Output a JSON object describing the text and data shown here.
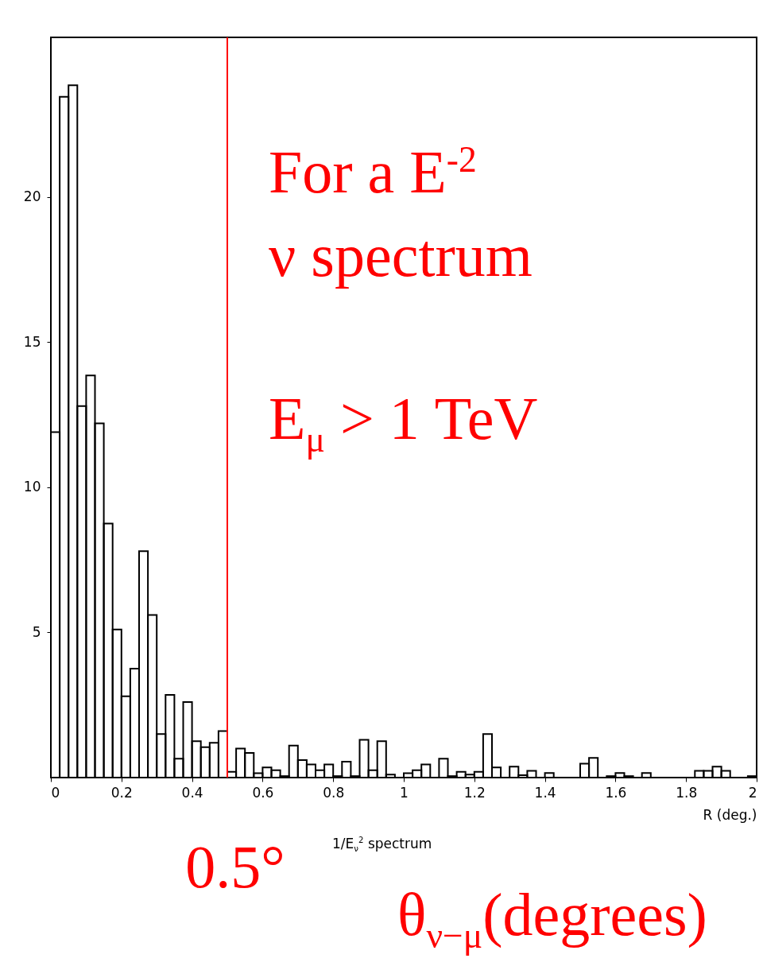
{
  "chart_data": {
    "type": "histogram",
    "xlabel": "R (deg.)",
    "bins": [
      0,
      0.025,
      0.05,
      0.075,
      0.1,
      0.125,
      0.15,
      0.175,
      0.2,
      0.225,
      0.25,
      0.275,
      0.3,
      0.325,
      0.35,
      0.375,
      0.4,
      0.425,
      0.45,
      0.475,
      0.5,
      0.525,
      0.55,
      0.575,
      0.6,
      0.625,
      0.65,
      0.675,
      0.7,
      0.725,
      0.75,
      0.775,
      0.8,
      0.825,
      0.85,
      0.875,
      0.9,
      0.925,
      0.95,
      0.975,
      1,
      1.025,
      1.05,
      1.075,
      1.1,
      1.125,
      1.15,
      1.175,
      1.2,
      1.225,
      1.25,
      1.275,
      1.3,
      1.325,
      1.35,
      1.375,
      1.4,
      1.425,
      1.45,
      1.475,
      1.5,
      1.525,
      1.55,
      1.575,
      1.6,
      1.625,
      1.65,
      1.675,
      1.7,
      1.725,
      1.75,
      1.775,
      1.8,
      1.825,
      1.85,
      1.875,
      1.9,
      1.925,
      1.95,
      1.975,
      2
    ],
    "values": [
      11.9,
      23.45,
      23.85,
      12.8,
      13.85,
      12.2,
      8.75,
      5.1,
      2.8,
      3.75,
      7.8,
      5.6,
      1.5,
      2.85,
      0.65,
      2.6,
      1.25,
      1.05,
      1.2,
      1.6,
      0.2,
      1.0,
      0.85,
      0.15,
      0.35,
      0.25,
      0.05,
      1.1,
      0.6,
      0.45,
      0.25,
      0.45,
      0.05,
      0.55,
      0.05,
      1.3,
      0.25,
      1.25,
      0.1,
      0,
      0.15,
      0.25,
      0.45,
      0,
      0.65,
      0.05,
      0.2,
      0.1,
      0.2,
      1.5,
      0.35,
      0,
      0.38,
      0.08,
      0.23,
      0,
      0.16,
      0,
      0,
      0,
      0.48,
      0.68,
      0,
      0.05,
      0.16,
      0.05,
      0,
      0.16,
      0,
      0,
      0,
      0,
      0,
      0.23,
      0.23,
      0.38,
      0.23,
      0,
      0,
      0.05
    ],
    "color": "#000000",
    "xlim": [
      0,
      2
    ],
    "xticks": [
      0,
      0.2,
      0.4,
      0.6,
      0.8,
      1,
      1.2,
      1.4,
      1.6,
      1.8,
      2
    ],
    "ylim": [
      0,
      25.5
    ],
    "yticks": [
      5,
      10,
      15,
      20
    ],
    "grid": false,
    "ref_lines": [
      {
        "axis": "x",
        "value": 0.5,
        "label": "0.5°",
        "color": "#ff0000"
      }
    ],
    "annotations": [
      "For a E$^{-2}$",
      "ν spectrum",
      "E$_{μ}$ > 1 TeV",
      "1/E$_{ν}$$^{2}$ spectrum",
      "θ$_{ν−μ}$(degrees)"
    ]
  }
}
